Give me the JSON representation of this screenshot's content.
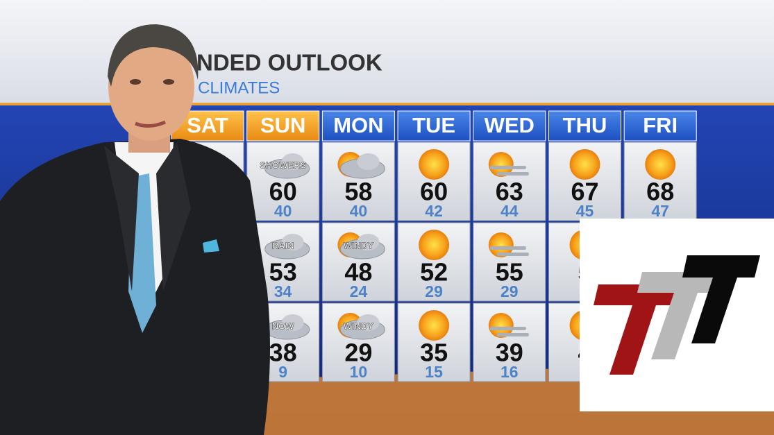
{
  "header": {
    "title": "NDED OUTLOOK",
    "subtitle": "CLIMATES"
  },
  "days": [
    "SAT",
    "SUN",
    "MON",
    "TUE",
    "WED",
    "THU",
    "FRI"
  ],
  "rows": [
    [
      null,
      {
        "label": "SHOWERS",
        "high": 60,
        "low": 40
      },
      {
        "high": 58,
        "low": 40
      },
      {
        "high": 60,
        "low": 42
      },
      {
        "high": 63,
        "low": 44
      },
      {
        "high": 67,
        "low": 45
      },
      {
        "high": 68,
        "low": 47
      }
    ],
    [
      null,
      {
        "label": "RAIN",
        "high": 53,
        "low": 34
      },
      {
        "label": "WINDY",
        "high": 48,
        "low": 24
      },
      {
        "high": 52,
        "low": 29
      },
      {
        "high": 55,
        "low": 29
      },
      {
        "high": 5
      },
      null
    ],
    [
      null,
      {
        "label": "NOW",
        "high": 38,
        "low": 9
      },
      {
        "label": "WINDY",
        "high": 29,
        "low": 10
      },
      {
        "high": 35,
        "low": 15
      },
      {
        "high": 39,
        "low": 16
      },
      {
        "high": 4
      },
      null
    ]
  ]
}
